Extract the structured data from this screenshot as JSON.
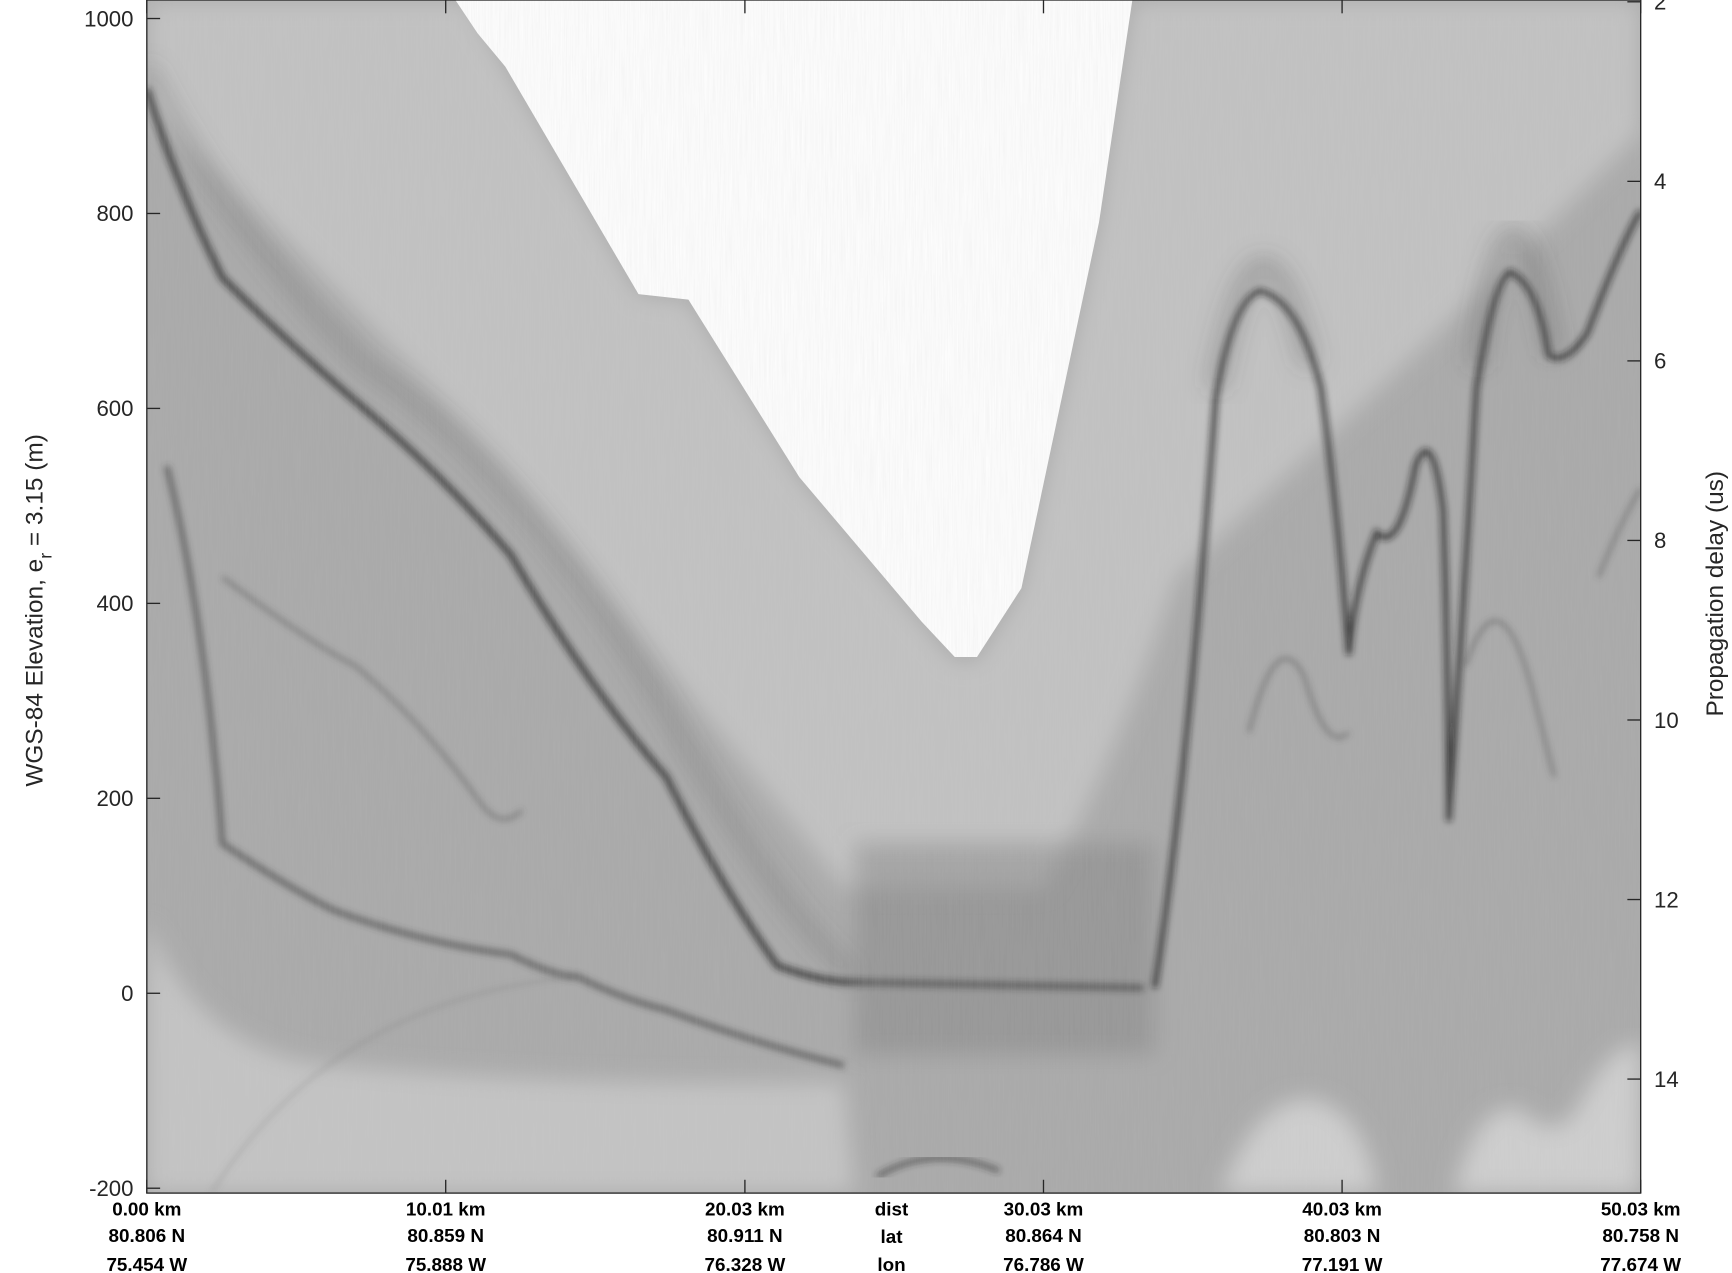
{
  "chart_data": {
    "type": "radargram",
    "ylabel": [
      "WGS-84 Elevation, e",
      "r",
      " = 3.15 (m)"
    ],
    "y2label": "Propagation delay (us)",
    "ylim": [
      -205,
      1019
    ],
    "yticks": [
      {
        "value": -200,
        "label": "-200"
      },
      0,
      200,
      400,
      600,
      800,
      1000
    ],
    "y2lim": [
      15.27,
      1.98
    ],
    "y2ticks": [
      2,
      4,
      6,
      8,
      10,
      12,
      14
    ],
    "xlim": [
      0,
      50.03
    ],
    "xticks": [
      {
        "value": 0,
        "label": "0.00 km"
      },
      {
        "value": 10.01,
        "label": "10.01 km"
      },
      {
        "value": 20.03,
        "label": "20.03 km"
      },
      {
        "value": 30.03,
        "label": "30.03 km"
      },
      {
        "value": 40.03,
        "label": "40.03 km"
      },
      {
        "value": 50.03,
        "label": "50.03 km"
      }
    ],
    "lat_labels": [
      "80.806 N",
      "80.859 N",
      "80.911 N",
      "80.864 N",
      "80.803 N",
      "80.758 N"
    ],
    "lon_labels": [
      "75.454 W",
      "75.888 W",
      "76.328 W",
      "76.786 W",
      "77.191 W",
      "77.674 W"
    ],
    "row_labels": [
      "dist",
      "lat",
      "lon"
    ]
  }
}
